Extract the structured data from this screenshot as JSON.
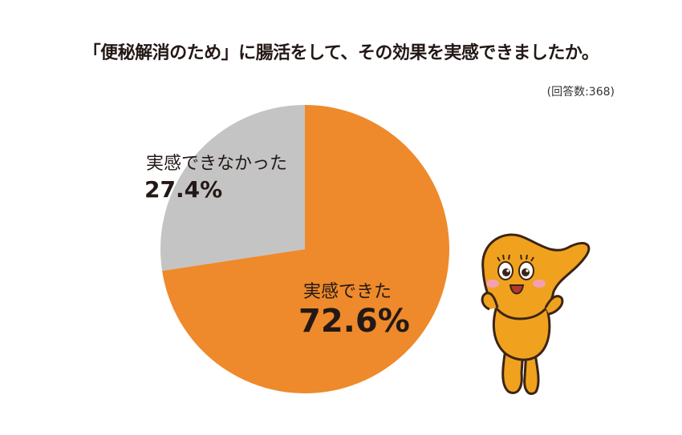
{
  "page": {
    "title": "「便秘解消のため」に腸活をして、その効果を実感できましたか。",
    "note": "(回答数:368)"
  },
  "chart_data": {
    "type": "pie",
    "title": "「便秘解消のため」に腸活をして、その効果を実感できましたか。",
    "slices": [
      {
        "label": "実感できた",
        "value": 72.6,
        "value_label": "72.6%",
        "color": "#ee8a2b"
      },
      {
        "label": "実感できなかった",
        "value": 27.4,
        "value_label": "27.4%",
        "color": "#c4c4c4"
      }
    ],
    "start": "top, clockwise"
  },
  "mascot": {
    "icon": "orange-mascot-icon",
    "body_color": "#f0a21e",
    "cheek_color": "#f4a0b4"
  }
}
